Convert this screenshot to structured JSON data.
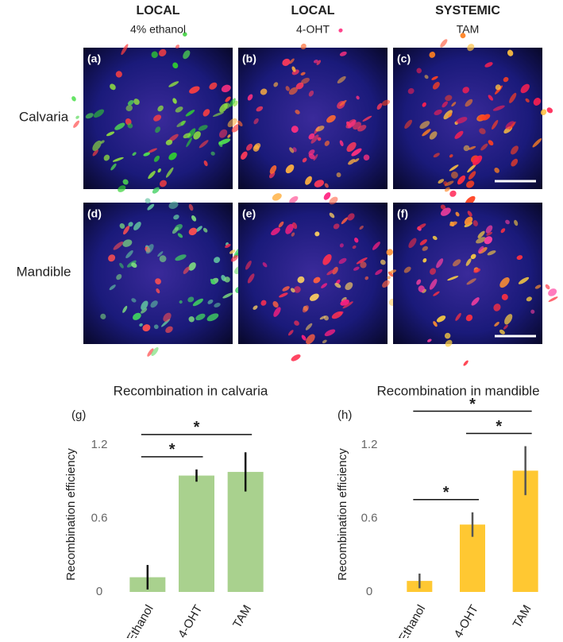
{
  "panels": {
    "columns": [
      {
        "title": "LOCAL",
        "subtitle": "4% ethanol"
      },
      {
        "title": "LOCAL",
        "subtitle": "4-OHT"
      },
      {
        "title": "SYSTEMIC",
        "subtitle": "TAM"
      }
    ],
    "rows": [
      "Calvaria",
      "Mandible"
    ],
    "labels": [
      "(a)",
      "(b)",
      "(c)",
      "(d)",
      "(e)",
      "(f)"
    ]
  },
  "chart_data": [
    {
      "type": "bar",
      "title": "Recombination in calvaria",
      "panel_label": "(g)",
      "y_label": "Recombination efficiency",
      "categories": [
        "Ethanol",
        "4-OHT",
        "TAM"
      ],
      "values": [
        0.12,
        0.95,
        0.98
      ],
      "errors": [
        0.1,
        0.05,
        0.16
      ],
      "color": "#a9d18e",
      "ylim": [
        0,
        1.2
      ],
      "yticks": [
        0,
        0.6,
        1.2
      ],
      "annotations": [
        {
          "label": "*",
          "between": [
            "Ethanol",
            "4-OHT"
          ]
        },
        {
          "label": "*",
          "between": [
            "Ethanol",
            "TAM"
          ]
        }
      ]
    },
    {
      "type": "bar",
      "title": "Recombination in mandible",
      "panel_label": "(h)",
      "y_label": "Recombination efficiency",
      "categories": [
        "Ethanol",
        "4-OHT",
        "TAM"
      ],
      "values": [
        0.09,
        0.55,
        0.99
      ],
      "errors": [
        0.06,
        0.1,
        0.2
      ],
      "color": "#ffc832",
      "ylim": [
        0,
        1.2
      ],
      "yticks": [
        0,
        0.6,
        1.2
      ],
      "annotations": [
        {
          "label": "*",
          "between": [
            "Ethanol",
            "4-OHT"
          ]
        },
        {
          "label": "*",
          "between": [
            "4-OHT",
            "TAM"
          ]
        },
        {
          "label": "*",
          "between": [
            "Ethanol",
            "TAM"
          ]
        }
      ]
    }
  ]
}
